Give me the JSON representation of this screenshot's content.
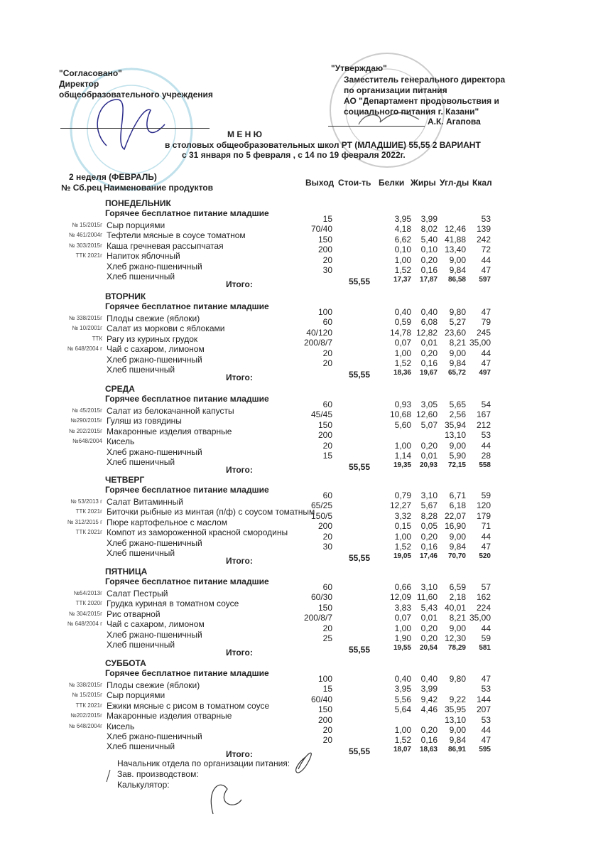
{
  "left_header": {
    "agreed": "\"Согласовано\"",
    "role": "Директор",
    "org": "общеобразовательного учреждения"
  },
  "right_header": {
    "approve": "\"Утверждаю\"",
    "lines": [
      "Заместитель генерального директора",
      "по организации питания",
      "АО \"Департамент продовольствия  и",
      "социального питания г. Казани\""
    ],
    "signer": "А.К. Агапова"
  },
  "title": {
    "main": "М Е Н Ю",
    "line2": "в столовых общеобразовательных школ РТ (МЛАДШИЕ) 55,55 2 ВАРИАНТ",
    "line3": "с 31 января по 5 февраля , с 14 по 19 февраля 2022г."
  },
  "week": "2 неделя (ФЕВРАЛЬ)",
  "columns": {
    "recipe": "№ Сб.рец",
    "name": "Наименование продуктов",
    "out": "Выход",
    "cost": "Стои-ть",
    "protein": "Белки",
    "fat": "Жиры",
    "carbs": "Угл-ды",
    "kcal": "Ккал"
  },
  "total_label": "Итого:",
  "days": [
    {
      "name": "ПОНЕДЕЛЬНИК",
      "subtitle": "Горячее бесплатное питание младшие",
      "items": [
        {
          "code": "№ 15/2015г",
          "name": "Сыр порциями",
          "out": "15",
          "b": "3,95",
          "z": "3,99",
          "u": "",
          "k": "53"
        },
        {
          "code": "№ 461/2004г",
          "name": "Тефтели мясные  в соусе томатном",
          "out": "70/40",
          "b": "4,18",
          "z": "8,02",
          "u": "12,46",
          "k": "139"
        },
        {
          "code": "№ 303/2015г",
          "name": "Каша гречневая рассыпчатая",
          "out": "150",
          "b": "6,62",
          "z": "5,40",
          "u": "41,88",
          "k": "242"
        },
        {
          "code": "ТТК 2021г",
          "name": "Напиток яблочный",
          "out": "200",
          "b": "0,10",
          "z": "0,10",
          "u": "13,40",
          "k": "72"
        },
        {
          "code": "",
          "name": "Хлеб ржано-пшеничный",
          "out": "20",
          "b": "1,00",
          "z": "0,20",
          "u": "9,00",
          "k": "44"
        },
        {
          "code": "",
          "name": "Хлеб пшеничный",
          "out": "30",
          "b": "1,52",
          "z": "0,16",
          "u": "9,84",
          "k": "47"
        }
      ],
      "total": {
        "cost": "55,55",
        "b": "17,37",
        "z": "17,87",
        "u": "86,58",
        "k": "597"
      }
    },
    {
      "name": "ВТОРНИК",
      "subtitle": "Горячее бесплатное питание младшие",
      "items": [
        {
          "code": "№ 338/2015г",
          "name": "Плоды свежие (яблоки)",
          "out": "100",
          "b": "0,40",
          "z": "0,40",
          "u": "9,80",
          "k": "47"
        },
        {
          "code": "№ 10/2001г",
          "name": "Салат из моркови с яблоками",
          "out": "60",
          "b": "0,59",
          "z": "6,08",
          "u": "5,27",
          "k": "79"
        },
        {
          "code": "ТТК",
          "name": "Рагу из куриных грудок",
          "out": "40/120",
          "b": "14,78",
          "z": "12,82",
          "u": "23,60",
          "k": "245"
        },
        {
          "code": "№ 648/2004 г",
          "name": "Чай с сахаром, лимоном",
          "out": "200/8/7",
          "b": "0,07",
          "z": "0,01",
          "u": "8,21",
          "k": "35,00"
        },
        {
          "code": "",
          "name": "Хлеб ржано-пшеничный",
          "out": "20",
          "b": "1,00",
          "z": "0,20",
          "u": "9,00",
          "k": "44"
        },
        {
          "code": "",
          "name": "Хлеб пшеничный",
          "out": "20",
          "b": "1,52",
          "z": "0,16",
          "u": "9,84",
          "k": "47"
        }
      ],
      "total": {
        "cost": "55,55",
        "b": "18,36",
        "z": "19,67",
        "u": "65,72",
        "k": "497"
      }
    },
    {
      "name": "СРЕДА",
      "subtitle": "Горячее бесплатное питание младшие",
      "items": [
        {
          "code": "№ 45/2015г",
          "name": "Салат из белокачанной капусты",
          "out": "60",
          "b": "0,93",
          "z": "3,05",
          "u": "5,65",
          "k": "54"
        },
        {
          "code": "№290/2015г",
          "name": "Гуляш из говядины",
          "out": "45/45",
          "b": "10,68",
          "z": "12,60",
          "u": "2,56",
          "k": "167"
        },
        {
          "code": "№ 202/2015г",
          "name": "Макаронные изделия отварные",
          "out": "150",
          "b": "5,60",
          "z": "5,07",
          "u": "35,94",
          "k": "212"
        },
        {
          "code": "№648/2004",
          "name": "Кисель",
          "out": "200",
          "b": "",
          "z": "",
          "u": "13,10",
          "k": "53"
        },
        {
          "code": "",
          "name": "Хлеб ржано-пшеничный",
          "out": "20",
          "b": "1,00",
          "z": "0,20",
          "u": "9,00",
          "k": "44"
        },
        {
          "code": "",
          "name": "Хлеб пшеничный",
          "out": "15",
          "b": "1,14",
          "z": "0,01",
          "u": "5,90",
          "k": "28"
        }
      ],
      "total": {
        "cost": "55,55",
        "b": "19,35",
        "z": "20,93",
        "u": "72,15",
        "k": "558"
      }
    },
    {
      "name": "ЧЕТВЕРГ",
      "subtitle": "Горячее бесплатное питание младшие",
      "items": [
        {
          "code": "№ 53/2013 г",
          "name": "Салат Витаминный",
          "out": "60",
          "b": "0,79",
          "z": "3,10",
          "u": "6,71",
          "k": "59"
        },
        {
          "code": "ТТК 2021г",
          "name": "Биточки рыбные из минтая (п/ф) с соусом томатным",
          "out": "65/25",
          "b": "12,27",
          "z": "5,67",
          "u": "6,18",
          "k": "120"
        },
        {
          "code": "№ 312/2015 г",
          "name": "Пюре картофельное с маслом",
          "out": "150/5",
          "b": "3,32",
          "z": "8,28",
          "u": "22,07",
          "k": "179"
        },
        {
          "code": "ТТК 2021г",
          "name": "Компот из замороженной красной смородины",
          "out": "200",
          "b": "0,15",
          "z": "0,05",
          "u": "16,90",
          "k": "71"
        },
        {
          "code": "",
          "name": "Хлеб ржано-пшеничный",
          "out": "20",
          "b": "1,00",
          "z": "0,20",
          "u": "9,00",
          "k": "44"
        },
        {
          "code": "",
          "name": "Хлеб пшеничный",
          "out": "30",
          "b": "1,52",
          "z": "0,16",
          "u": "9,84",
          "k": "47"
        }
      ],
      "total": {
        "cost": "55,55",
        "b": "19,05",
        "z": "17,46",
        "u": "70,70",
        "k": "520"
      }
    },
    {
      "name": "ПЯТНИЦА",
      "subtitle": "Горячее бесплатное питание младшие",
      "items": [
        {
          "code": "№54/2013г",
          "name": "Салат Пестрый",
          "out": "60",
          "b": "0,66",
          "z": "3,10",
          "u": "6,59",
          "k": "57"
        },
        {
          "code": "ТТК 2020г",
          "name": "Грудка куриная в томатном соусе",
          "out": "60/30",
          "b": "12,09",
          "z": "11,60",
          "u": "2,18",
          "k": "162"
        },
        {
          "code": "№ 304/2015г",
          "name": "Рис отварной",
          "out": "150",
          "b": "3,83",
          "z": "5,43",
          "u": "40,01",
          "k": "224"
        },
        {
          "code": "№ 648/2004 г",
          "name": "Чай с сахаром, лимоном",
          "out": "200/8/7",
          "b": "0,07",
          "z": "0,01",
          "u": "8,21",
          "k": "35,00"
        },
        {
          "code": "",
          "name": "Хлеб ржано-пшеничный",
          "out": "20",
          "b": "1,00",
          "z": "0,20",
          "u": "9,00",
          "k": "44"
        },
        {
          "code": "",
          "name": "Хлеб пшеничный",
          "out": "25",
          "b": "1,90",
          "z": "0,20",
          "u": "12,30",
          "k": "59"
        }
      ],
      "total": {
        "cost": "55,55",
        "b": "19,55",
        "z": "20,54",
        "u": "78,29",
        "k": "581"
      }
    },
    {
      "name": "СУББОТА",
      "subtitle": "Горячее бесплатное питание младшие",
      "items": [
        {
          "code": "№ 338/2015г",
          "name": "Плоды свежие (яблоки)",
          "out": "100",
          "b": "0,40",
          "z": "0,40",
          "u": "9,80",
          "k": "47"
        },
        {
          "code": "№ 15/2015г",
          "name": "Сыр порциями",
          "out": "15",
          "b": "3,95",
          "z": "3,99",
          "u": "",
          "k": "53"
        },
        {
          "code": "ТТК 2021г",
          "name": "Ежики мясные с рисом  в томатном соусе",
          "out": "60/40",
          "b": "5,56",
          "z": "9,42",
          "u": "9,22",
          "k": "144"
        },
        {
          "code": "№202/2015г",
          "name": "Макаронные изделия отварные",
          "out": "150",
          "b": "5,64",
          "z": "4,46",
          "u": "35,95",
          "k": "207"
        },
        {
          "code": "№ 648/2004г",
          "name": "Кисель",
          "out": "200",
          "b": "",
          "z": "",
          "u": "13,10",
          "k": "53"
        },
        {
          "code": "",
          "name": "Хлеб ржано-пшеничный",
          "out": "20",
          "b": "1,00",
          "z": "0,20",
          "u": "9,00",
          "k": "44"
        },
        {
          "code": "",
          "name": "Хлеб пшеничный",
          "out": "20",
          "b": "1,52",
          "z": "0,16",
          "u": "9,84",
          "k": "47"
        }
      ],
      "total": {
        "cost": "55,55",
        "b": "18,07",
        "z": "18,63",
        "u": "86,91",
        "k": "595"
      }
    }
  ],
  "footer": [
    "Начальник отдела по организации питания:",
    "Зав. производством:",
    "Калькулятор:"
  ],
  "colors": {
    "stamp": "#8ec9dc",
    "ink": "#222222"
  }
}
